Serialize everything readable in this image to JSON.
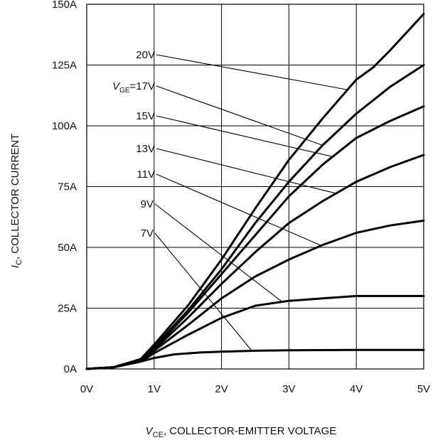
{
  "chart_data": {
    "type": "line",
    "x_unit": "V",
    "y_unit": "A",
    "xlim": [
      0,
      5
    ],
    "ylim": [
      0,
      150
    ],
    "grid": true,
    "x_ticks": [
      {
        "value": 0,
        "label": "0V"
      },
      {
        "value": 1,
        "label": "1V"
      },
      {
        "value": 2,
        "label": "2V"
      },
      {
        "value": 3,
        "label": "3V"
      },
      {
        "value": 4,
        "label": "4V"
      },
      {
        "value": 5,
        "label": "5V"
      }
    ],
    "y_ticks": [
      {
        "value": 0,
        "label": "0A"
      },
      {
        "value": 25,
        "label": "25A"
      },
      {
        "value": 50,
        "label": "50A"
      },
      {
        "value": 75,
        "label": "75A"
      },
      {
        "value": 100,
        "label": "100A"
      },
      {
        "value": 125,
        "label": "125A"
      },
      {
        "value": 150,
        "label": "150A"
      }
    ],
    "xlabel": {
      "main": "V",
      "sub": "CE",
      "rest": ", COLLECTOR-EMITTER VOLTAGE"
    },
    "ylabel": {
      "main": "I",
      "sub": "C",
      "rest": ", COLLECTOR CURRENT"
    },
    "series_prefix": {
      "main": "V",
      "sub": "GE",
      "rest": "="
    },
    "series": [
      {
        "name": "20V",
        "x": [
          0,
          0.4,
          0.8,
          1.0,
          1.5,
          2.0,
          2.5,
          3.0,
          3.5,
          4.0,
          4.25,
          4.5,
          5.0
        ],
        "y": [
          0,
          0.7,
          4,
          10,
          26,
          45,
          66,
          86,
          103,
          119,
          124,
          131,
          146
        ]
      },
      {
        "name": "17V",
        "x": [
          0,
          0.4,
          0.8,
          1.0,
          1.5,
          2.0,
          2.5,
          3.0,
          3.5,
          4.0,
          4.5,
          5.0
        ],
        "y": [
          0,
          0.7,
          4,
          9,
          24,
          41,
          60,
          77,
          92,
          105,
          116,
          125
        ]
      },
      {
        "name": "15V",
        "x": [
          0,
          0.4,
          0.8,
          1.0,
          1.5,
          2.0,
          2.5,
          3.0,
          3.5,
          4.0,
          4.5,
          5.0
        ],
        "y": [
          0,
          0.7,
          4,
          8.5,
          23,
          39,
          55,
          71,
          84,
          95,
          102,
          108
        ]
      },
      {
        "name": "13V",
        "x": [
          0,
          0.4,
          0.8,
          1.0,
          1.5,
          2.0,
          2.5,
          3.0,
          3.5,
          4.0,
          4.5,
          5.0
        ],
        "y": [
          0,
          0.7,
          3.5,
          8,
          21,
          35,
          48,
          60,
          69,
          77,
          83,
          88
        ]
      },
      {
        "name": "11V",
        "x": [
          0,
          0.4,
          0.8,
          1.0,
          1.5,
          2.0,
          2.5,
          3.0,
          3.5,
          4.0,
          4.5,
          5.0
        ],
        "y": [
          0,
          0.7,
          3.5,
          7.5,
          18,
          29,
          38,
          45,
          51,
          56,
          59,
          61
        ]
      },
      {
        "name": "9V",
        "x": [
          0,
          0.4,
          0.8,
          1.0,
          1.5,
          2.0,
          2.5,
          3.0,
          3.5,
          4.0,
          4.5,
          5.0
        ],
        "y": [
          0,
          0.7,
          3,
          6.5,
          14,
          21,
          26,
          28,
          29,
          30,
          30,
          30
        ]
      },
      {
        "name": "7V",
        "x": [
          0,
          0.4,
          0.8,
          1.0,
          1.3,
          1.7,
          2.0,
          2.5,
          3.0,
          4.0,
          5.0
        ],
        "y": [
          0,
          0.7,
          3,
          4.5,
          6,
          6.8,
          7.1,
          7.5,
          7.7,
          7.8,
          7.8
        ]
      }
    ],
    "annotations": [
      {
        "series": "20V",
        "label": "20V",
        "show_prefix": false
      },
      {
        "series": "17V",
        "label": "17V",
        "show_prefix": true
      },
      {
        "series": "15V",
        "label": "15V",
        "show_prefix": false
      },
      {
        "series": "13V",
        "label": "13V",
        "show_prefix": false
      },
      {
        "series": "11V",
        "label": "11V",
        "show_prefix": false
      },
      {
        "series": "9V",
        "label": "9V",
        "show_prefix": false
      },
      {
        "series": "7V",
        "label": "7V",
        "show_prefix": false
      }
    ]
  }
}
